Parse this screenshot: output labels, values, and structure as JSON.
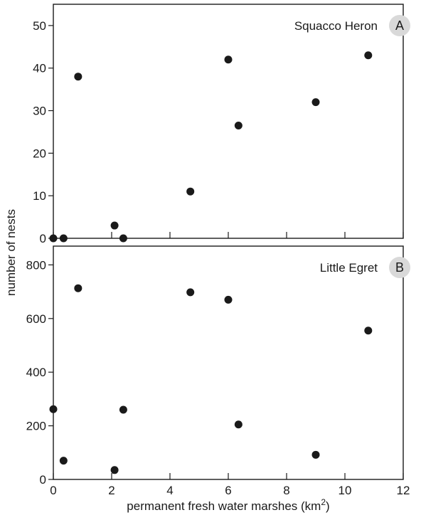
{
  "chart_data": [
    {
      "type": "scatter",
      "title": "Squacco Heron",
      "panel_label": "A",
      "xlim": [
        0,
        12
      ],
      "ylim": [
        0,
        55
      ],
      "yticks": [
        0,
        10,
        20,
        30,
        40,
        50
      ],
      "points": [
        {
          "x": 0.0,
          "y": 0
        },
        {
          "x": 0.35,
          "y": 0
        },
        {
          "x": 0.85,
          "y": 38
        },
        {
          "x": 2.1,
          "y": 3
        },
        {
          "x": 2.4,
          "y": 0
        },
        {
          "x": 4.7,
          "y": 11
        },
        {
          "x": 6.0,
          "y": 42
        },
        {
          "x": 6.35,
          "y": 26.5
        },
        {
          "x": 9.0,
          "y": 32
        },
        {
          "x": 10.8,
          "y": 43
        }
      ]
    },
    {
      "type": "scatter",
      "title": "Little Egret",
      "panel_label": "B",
      "xlim": [
        0,
        12
      ],
      "ylim": [
        0,
        870
      ],
      "yticks": [
        0,
        200,
        400,
        600,
        800
      ],
      "points": [
        {
          "x": 0.0,
          "y": 262
        },
        {
          "x": 0.35,
          "y": 70
        },
        {
          "x": 0.85,
          "y": 713
        },
        {
          "x": 2.1,
          "y": 35
        },
        {
          "x": 2.4,
          "y": 260
        },
        {
          "x": 4.7,
          "y": 698
        },
        {
          "x": 6.0,
          "y": 670
        },
        {
          "x": 6.35,
          "y": 205
        },
        {
          "x": 9.0,
          "y": 92
        },
        {
          "x": 10.8,
          "y": 555
        }
      ]
    }
  ],
  "xaxis": {
    "label": "permanent fresh water marshes (km",
    "label_sup": "2",
    "label_end": ")",
    "ticks": [
      0,
      2,
      4,
      6,
      8,
      10,
      12
    ]
  },
  "yaxis": {
    "label": "number of nests"
  },
  "colors": {
    "point": "#1a1a1a",
    "axis": "#1a1a1a",
    "badge": "#d9d9d9"
  }
}
